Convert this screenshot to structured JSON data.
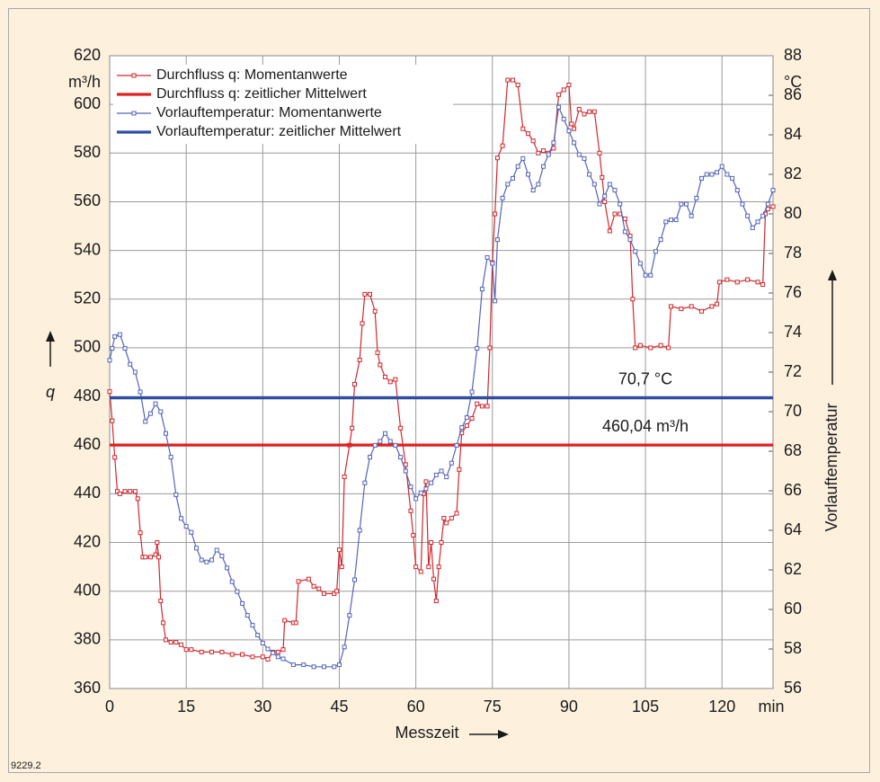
{
  "chart_data": {
    "type": "line",
    "y_label": "q",
    "y_unit": "m³/h",
    "y2_label": "Vorlauftemperatur",
    "y2_unit": "°C",
    "x_label": "Messzeit",
    "x_unit": "min",
    "footnote": "9229.2",
    "xlim": [
      0,
      130
    ],
    "xticks": [
      0,
      15,
      30,
      45,
      60,
      75,
      90,
      105,
      120
    ],
    "ylim": [
      360,
      620
    ],
    "yticks": [
      360,
      380,
      400,
      420,
      440,
      460,
      480,
      500,
      520,
      540,
      560,
      580,
      600,
      620
    ],
    "y2lim": [
      56,
      88
    ],
    "y2ticks": [
      56,
      58,
      60,
      62,
      64,
      66,
      68,
      70,
      72,
      74,
      76,
      78,
      80,
      82,
      84,
      86,
      88
    ],
    "grid": true,
    "legend": "top-left",
    "series": [
      {
        "name": "Durchfluss q: Momentanwerte",
        "color": "#d0282e",
        "markers": true,
        "x": [
          0,
          0.5,
          1,
          1.5,
          2,
          3,
          4,
          5,
          5.5,
          6,
          6.5,
          7,
          8,
          9,
          9.3,
          9.6,
          10,
          10.5,
          11,
          12,
          13,
          14,
          15,
          16,
          18,
          20,
          22,
          24,
          26,
          28,
          30,
          31,
          32,
          33,
          34,
          34.3,
          36,
          36.5,
          37,
          39,
          40,
          41,
          42,
          44,
          44.5,
          45,
          45.5,
          46,
          47,
          47.5,
          48,
          49,
          49.5,
          50,
          51,
          52,
          52.5,
          53,
          54,
          55,
          56,
          57,
          58,
          59,
          59.5,
          60,
          61,
          61.5,
          62,
          62.5,
          63,
          63.5,
          64,
          64.5,
          65,
          65.5,
          66,
          67,
          68,
          68.5,
          69,
          70,
          71,
          72,
          73,
          74,
          74.5,
          75,
          75.5,
          76,
          77,
          78,
          79,
          80,
          81,
          82,
          83,
          84,
          85,
          86,
          87,
          88,
          89,
          90,
          90.5,
          91,
          92,
          93,
          94,
          95,
          96,
          96.5,
          97,
          98,
          99,
          100,
          101,
          102,
          102.5,
          103,
          104,
          106,
          108,
          109.5,
          110,
          112,
          114,
          116,
          118,
          119,
          119.5,
          121,
          123,
          125,
          127,
          128,
          128.5,
          129,
          130
        ],
        "values": [
          482,
          470,
          455,
          441,
          440,
          441,
          441,
          441,
          438,
          424,
          414,
          414,
          414,
          415,
          420,
          414,
          396,
          387,
          380,
          379,
          379,
          378,
          376,
          376,
          375,
          375,
          375,
          374,
          374,
          373,
          373,
          372,
          375,
          375,
          376,
          388,
          387,
          387,
          404,
          405,
          402,
          401,
          399,
          399,
          400,
          417,
          410,
          447,
          460,
          467,
          485,
          495,
          510,
          522,
          522,
          515,
          498,
          493,
          488,
          486,
          487,
          467,
          452,
          433,
          423,
          410,
          408,
          440,
          445,
          410,
          420,
          405,
          396,
          410,
          420,
          430,
          428,
          430,
          432,
          450,
          465,
          468,
          471,
          477,
          476,
          476,
          500,
          535,
          555,
          578,
          583,
          610,
          610,
          608,
          590,
          588,
          585,
          580,
          581,
          580,
          582,
          604,
          606,
          608,
          592,
          590,
          598,
          596,
          597,
          597,
          580,
          570,
          560,
          548,
          555,
          555,
          553,
          546,
          520,
          500,
          501,
          500,
          501,
          500,
          517,
          516,
          517,
          515,
          517,
          518,
          527,
          528,
          527,
          528,
          527,
          526,
          555,
          557,
          558
        ]
      },
      {
        "name": "Durchfluss q: zeitlicher Mittelwert",
        "color": "#e0201f",
        "markers": false,
        "x": [
          0,
          130
        ],
        "values": [
          460.04,
          460.04
        ],
        "value_labels": [
          null,
          "460,04 m³/h"
        ]
      },
      {
        "name": "Vorlauftemperatur: Momentanwerte",
        "color": "#5563b8",
        "markers": true,
        "axis": "y2",
        "x": [
          0,
          0.5,
          1,
          2,
          3,
          4,
          5,
          6,
          7,
          8,
          9,
          10,
          11,
          12,
          13,
          14,
          15,
          16,
          17,
          18,
          19,
          20,
          21,
          22,
          23,
          24,
          25,
          26,
          27,
          28,
          29,
          30,
          31,
          32,
          33,
          34,
          36,
          38,
          40,
          42,
          44,
          45,
          46,
          47,
          48,
          49,
          50,
          51,
          52,
          53,
          54,
          55,
          56,
          57,
          58,
          59,
          60,
          61,
          62,
          63,
          64,
          65,
          66,
          67,
          68,
          69,
          70,
          71,
          72,
          73,
          74,
          75,
          75.5,
          76,
          77,
          78,
          79,
          80,
          81,
          82,
          83,
          84,
          85,
          86,
          87,
          88,
          89,
          90,
          91,
          92,
          93,
          94,
          95,
          96,
          97,
          98,
          99,
          100,
          101,
          102,
          103,
          104,
          105,
          106,
          107,
          108,
          109,
          110,
          111,
          112,
          113,
          114,
          115,
          116,
          117,
          118,
          119,
          120,
          121,
          122,
          123,
          124,
          125,
          126,
          127,
          128,
          129,
          130
        ],
        "values": [
          72.6,
          73.2,
          73.8,
          73.9,
          73.2,
          72.4,
          72.0,
          71.0,
          69.5,
          69.9,
          70.4,
          70.0,
          68.9,
          67.7,
          65.8,
          64.6,
          64.2,
          63.9,
          63.1,
          62.5,
          62.4,
          62.5,
          63.0,
          62.7,
          62.1,
          61.4,
          60.9,
          60.3,
          59.7,
          59.2,
          58.7,
          58.3,
          58.0,
          57.8,
          57.6,
          57.5,
          57.2,
          57.2,
          57.1,
          57.1,
          57.1,
          57.2,
          58.1,
          59.7,
          61.5,
          64.0,
          66.4,
          67.7,
          68.3,
          68.5,
          68.9,
          68.5,
          68.3,
          67.7,
          67.0,
          66.2,
          65.6,
          65.9,
          66.1,
          66.4,
          66.8,
          67.0,
          66.7,
          67.4,
          68.3,
          69.2,
          69.7,
          71.0,
          73.2,
          76.2,
          77.8,
          77.5,
          75.6,
          78.7,
          80.8,
          81.5,
          81.8,
          82.4,
          82.8,
          82.0,
          81.2,
          81.5,
          82.4,
          83.0,
          83.6,
          85.4,
          84.8,
          84.2,
          83.6,
          83.0,
          82.8,
          82.0,
          81.5,
          80.5,
          80.9,
          81.5,
          81.2,
          80.5,
          79.1,
          78.7,
          78.1,
          77.5,
          76.9,
          76.9,
          78.1,
          78.7,
          79.6,
          79.7,
          79.7,
          80.5,
          80.5,
          79.9,
          80.8,
          81.8,
          82.0,
          82.0,
          82.1,
          82.4,
          82.0,
          81.8,
          81.2,
          80.5,
          79.9,
          79.3,
          79.6,
          79.9,
          80.5,
          81.2
        ]
      },
      {
        "name": "Vorlauftemperatur: zeitlicher Mittelwert",
        "color": "#2d4ea3",
        "markers": false,
        "axis": "y2",
        "x": [
          0,
          130
        ],
        "values": [
          70.7,
          70.7
        ],
        "value_labels": [
          null,
          "70,7 °C"
        ]
      }
    ]
  }
}
